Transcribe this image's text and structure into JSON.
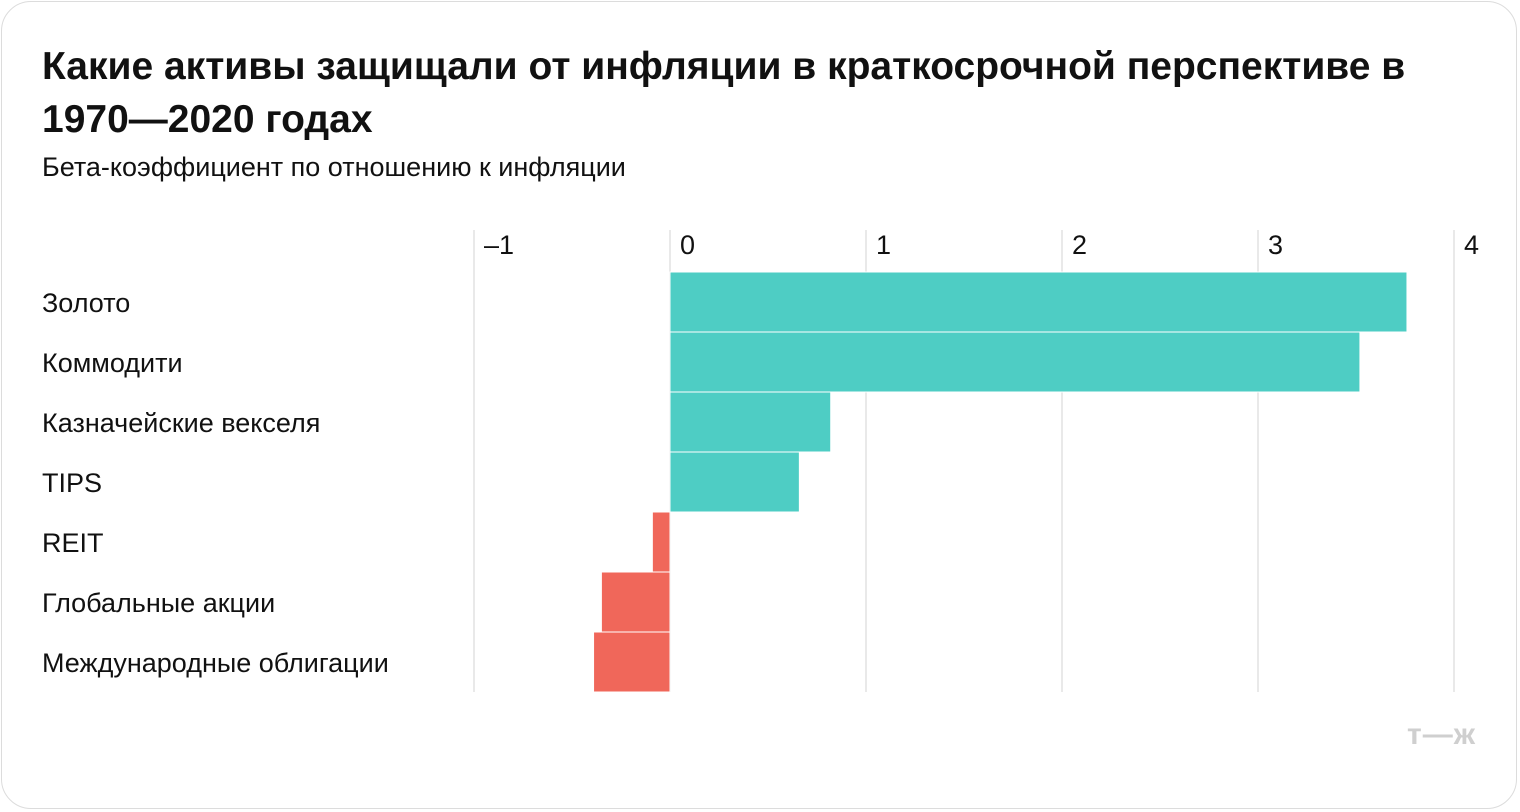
{
  "title": "Какие активы защищали от инфляции в краткосрочной перспективе в 1970—2020 годах",
  "subtitle": "Бета-коэффициент по отношению к инфляции",
  "watermark": "т—ж",
  "colors": {
    "positive": "#4ecdc4",
    "negative": "#f0675a",
    "grid": "#e2e2e2",
    "text": "#111111"
  },
  "chart_data": {
    "type": "bar",
    "orientation": "horizontal",
    "title": "Какие активы защищали от инфляции в краткосрочной перспективе в 1970—2020 годах",
    "subtitle": "Бета-коэффициент по отношению к инфляции",
    "categories": [
      "Золото",
      "Коммодити",
      "Казначейские векселя",
      "TIPS",
      "REIT",
      "Глобальные акции",
      "Международные облигации"
    ],
    "values": [
      3.76,
      3.52,
      0.82,
      0.66,
      -0.09,
      -0.35,
      -0.39
    ],
    "xlim": [
      -1,
      4
    ],
    "xticks": [
      -1,
      0,
      1,
      2,
      3,
      4
    ],
    "xtick_labels": [
      "–1",
      "0",
      "1",
      "2",
      "3",
      "4"
    ],
    "grid": true,
    "legend": "none"
  }
}
